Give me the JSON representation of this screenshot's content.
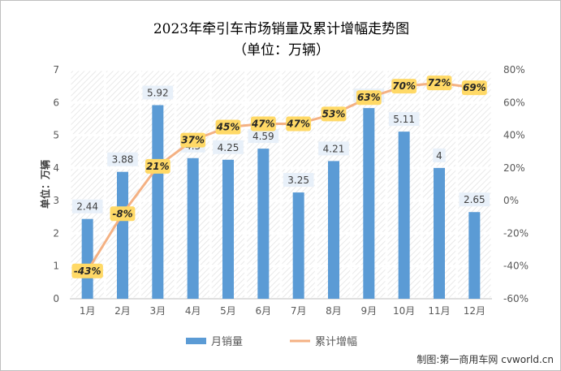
{
  "chart_data": {
    "type": "bar",
    "title": "2023年牵引车市场销量及累计增幅走势图",
    "subtitle": "（单位：万辆）",
    "ylabel": "单位：万辆",
    "categories": [
      "1月",
      "2月",
      "3月",
      "4月",
      "5月",
      "6月",
      "7月",
      "8月",
      "9月",
      "10月",
      "11月",
      "12月"
    ],
    "series": [
      {
        "name": "月销量",
        "type": "bar",
        "axis": "left",
        "color": "#5b9bd5",
        "values": [
          2.44,
          3.88,
          5.92,
          4.3,
          4.25,
          4.59,
          3.25,
          4.21,
          5.83,
          5.11,
          4,
          2.65
        ],
        "labels": [
          "2.44",
          "3.88",
          "5.92",
          "4.3",
          "4.25",
          "4.59",
          "3.25",
          "4.21",
          "5.83",
          "5.11",
          "4",
          "2.65"
        ]
      },
      {
        "name": "累计增幅",
        "type": "line",
        "axis": "right",
        "color": "#f4b183",
        "values": [
          -43,
          -8,
          21,
          37,
          45,
          47,
          47,
          53,
          63,
          70,
          72,
          69
        ],
        "labels": [
          "-43%",
          "-8%",
          "21%",
          "37%",
          "45%",
          "47%",
          "47%",
          "53%",
          "63%",
          "70%",
          "72%",
          "69%"
        ]
      }
    ],
    "ylim": [
      0,
      7
    ],
    "y_ticks": [
      "0",
      "1",
      "2",
      "3",
      "4",
      "5",
      "6",
      "7"
    ],
    "y2lim": [
      -60,
      80
    ],
    "y2_ticks": [
      "-60%",
      "-40%",
      "-20%",
      "0%",
      "20%",
      "40%",
      "60%",
      "80%"
    ],
    "grid": true,
    "legend": "bottom"
  },
  "watermark": "制图:第一商用车网 cvworld.cn"
}
